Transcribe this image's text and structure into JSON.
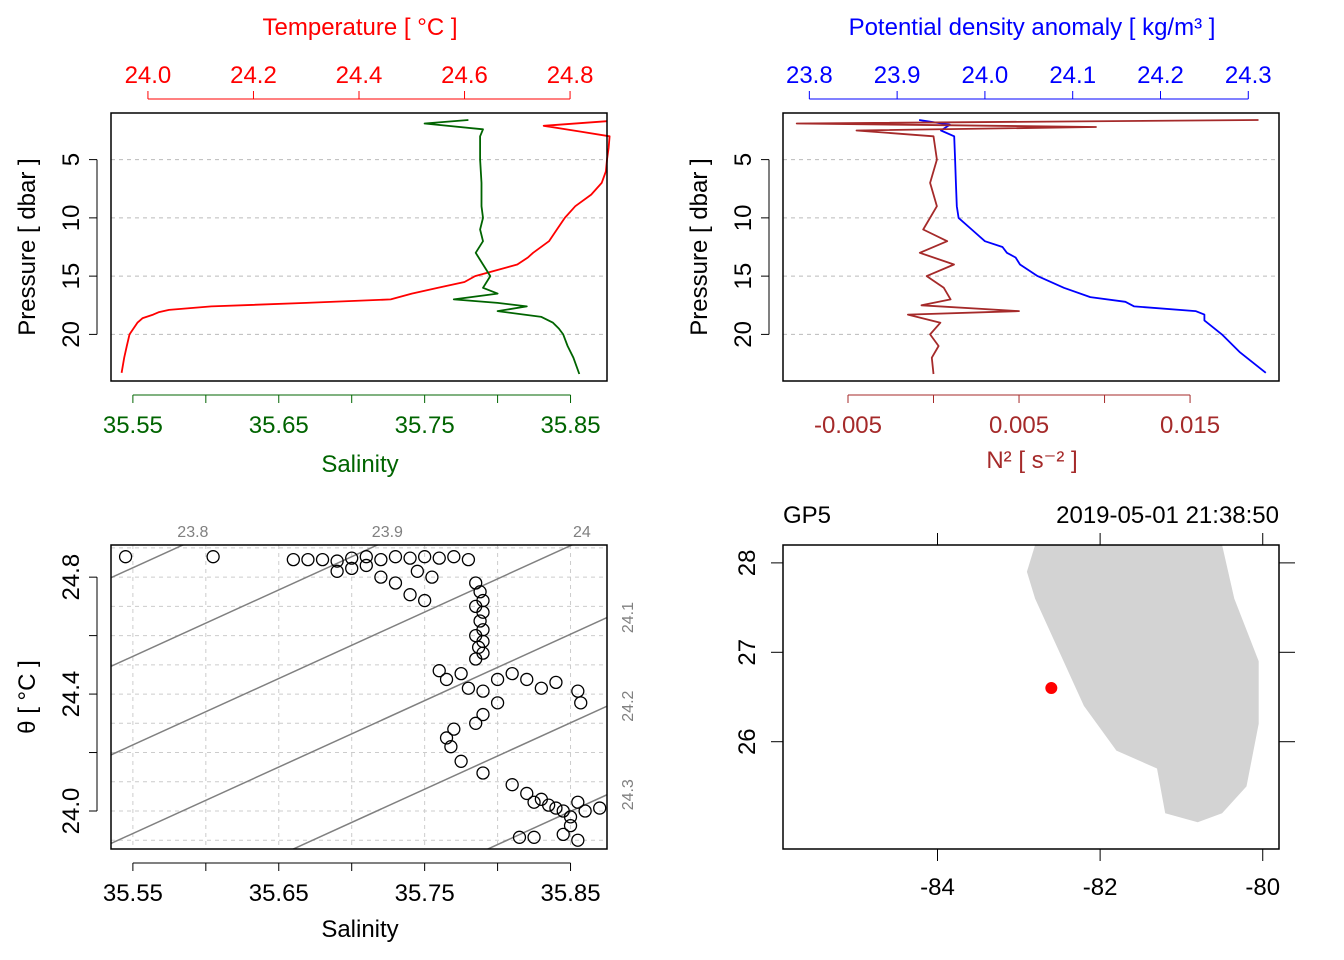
{
  "colors": {
    "temperature": "#ff0000",
    "salinity": "#006400",
    "density": "#0000ff",
    "n2": "#a52a2a",
    "grey": "#808080",
    "land": "#d3d3d3",
    "station": "#ff0000",
    "black": "#000000"
  },
  "chart_data": [
    {
      "type": "line",
      "panel": "top-left",
      "title": "Temperature [ °C ]",
      "top_axis": {
        "label": "Temperature [ °C ]",
        "range": [
          23.93,
          24.87
        ],
        "ticks": [
          "24.0",
          "24.2",
          "24.4",
          "24.6",
          "24.8"
        ]
      },
      "bottom_axis": {
        "label": "Salinity",
        "range": [
          35.535,
          35.875
        ],
        "ticks": [
          "35.55",
          "35.65",
          "35.75",
          "35.85"
        ],
        "minor_ticks": [
          35.6,
          35.7,
          35.8
        ]
      },
      "ylabel": "Pressure [ dbar ]",
      "ylim": [
        24,
        1
      ],
      "yticks": [
        "5",
        "10",
        "15",
        "20"
      ],
      "series": [
        {
          "name": "Temperature",
          "axis": "top",
          "p": [
            1.7,
            2.1,
            2.6,
            3.0,
            4.0,
            5.0,
            6.0,
            7.0,
            8.0,
            9.0,
            10.0,
            11.0,
            12.0,
            13.0,
            13.4,
            14.0,
            15.0,
            15.5,
            16.0,
            16.5,
            17.0,
            17.3,
            17.6,
            17.9,
            18.1,
            18.3,
            18.6,
            19.0,
            20.0,
            21.0,
            22.0,
            23.3
          ],
          "values": [
            24.87,
            24.75,
            24.82,
            24.875,
            24.873,
            24.87,
            24.868,
            24.86,
            24.84,
            24.81,
            24.79,
            24.775,
            24.76,
            24.73,
            24.72,
            24.7,
            24.62,
            24.6,
            24.55,
            24.5,
            24.46,
            24.3,
            24.12,
            24.04,
            24.02,
            24.01,
            23.99,
            23.98,
            23.965,
            23.96,
            23.955,
            23.95
          ]
        },
        {
          "name": "Salinity",
          "axis": "bottom",
          "p": [
            1.6,
            1.9,
            2.4,
            3.0,
            5.0,
            7.0,
            9.0,
            10.0,
            11.0,
            12.0,
            13.0,
            14.0,
            15.0,
            16.0,
            16.5,
            17.0,
            17.3,
            17.6,
            18.0,
            18.5,
            19.0,
            19.5,
            20.0,
            21.0,
            22.0,
            23.4
          ],
          "values": [
            35.78,
            35.75,
            35.79,
            35.788,
            35.788,
            35.789,
            35.789,
            35.79,
            35.788,
            35.79,
            35.785,
            35.79,
            35.795,
            35.79,
            35.8,
            35.77,
            35.8,
            35.82,
            35.8,
            35.83,
            35.838,
            35.842,
            35.845,
            35.848,
            35.852,
            35.856
          ]
        }
      ]
    },
    {
      "type": "line",
      "panel": "top-right",
      "title": "Potential density anomaly [ kg/m³ ]",
      "top_axis": {
        "label": "Potential density anomaly [ kg/m³ ]",
        "range": [
          23.77,
          24.335
        ],
        "ticks": [
          "23.8",
          "23.9",
          "24.0",
          "24.1",
          "24.2",
          "24.3"
        ]
      },
      "bottom_axis": {
        "label": "N² [ s⁻² ]",
        "range": [
          -0.0088,
          0.0202
        ],
        "ticks": [
          "-0.005",
          "0.005",
          "0.015"
        ],
        "minor_ticks": [
          0,
          0.01
        ]
      },
      "ylabel": "Pressure [ dbar ]",
      "ylim": [
        24,
        1
      ],
      "yticks": [
        "5",
        "10",
        "15",
        "20"
      ],
      "series": [
        {
          "name": "Potential density anomaly",
          "axis": "top",
          "p": [
            1.6,
            2.0,
            2.5,
            3.0,
            5.0,
            7.0,
            9.0,
            10.0,
            11.0,
            12.0,
            12.5,
            13.0,
            13.4,
            14.0,
            15.0,
            16.0,
            16.8,
            17.2,
            17.6,
            18.0,
            18.3,
            18.8,
            20.0,
            21.5,
            23.3
          ],
          "values": [
            23.925,
            23.96,
            23.95,
            23.965,
            23.966,
            23.967,
            23.968,
            23.97,
            23.985,
            24.0,
            24.02,
            24.025,
            24.035,
            24.04,
            24.06,
            24.09,
            24.12,
            24.16,
            24.17,
            24.24,
            24.25,
            24.25,
            24.27,
            24.29,
            24.32
          ]
        },
        {
          "name": "N²",
          "axis": "bottom",
          "p": [
            1.6,
            1.9,
            2.2,
            2.5,
            3.0,
            5.0,
            7.0,
            9.0,
            11.0,
            12.0,
            13.0,
            14.0,
            15.0,
            16.0,
            17.0,
            17.5,
            18.0,
            18.3,
            19.0,
            20.0,
            21.0,
            22.0,
            23.4
          ],
          "values": [
            0.019,
            -0.008,
            0.0095,
            -0.0045,
            0.0,
            0.0002,
            -0.0002,
            0.0002,
            -0.0006,
            0.0008,
            -0.0008,
            0.0012,
            -0.0004,
            0.0006,
            0.001,
            -0.0007,
            0.005,
            -0.0015,
            0.0004,
            -0.0002,
            0.0003,
            -0.0001,
            0.0
          ]
        }
      ]
    },
    {
      "type": "scatter",
      "panel": "bottom-left",
      "xlabel": "Salinity",
      "ylabel": "θ [ °C ]",
      "xlim": [
        35.535,
        35.875
      ],
      "ylim": [
        23.87,
        24.91
      ],
      "xticks": [
        "35.55",
        "35.65",
        "35.75",
        "35.85"
      ],
      "yticks": [
        "24.0",
        "24.4",
        "24.8"
      ],
      "isopycnals": [
        "23.8",
        "23.9",
        "24",
        "24.1",
        "24.2",
        "24.3"
      ],
      "points": [
        [
          35.545,
          24.87
        ],
        [
          35.605,
          24.87
        ],
        [
          35.66,
          24.86
        ],
        [
          35.67,
          24.86
        ],
        [
          35.68,
          24.86
        ],
        [
          35.69,
          24.855
        ],
        [
          35.7,
          24.865
        ],
        [
          35.71,
          24.87
        ],
        [
          35.72,
          24.86
        ],
        [
          35.73,
          24.87
        ],
        [
          35.74,
          24.865
        ],
        [
          35.75,
          24.87
        ],
        [
          35.76,
          24.865
        ],
        [
          35.77,
          24.87
        ],
        [
          35.78,
          24.86
        ],
        [
          35.69,
          24.82
        ],
        [
          35.7,
          24.83
        ],
        [
          35.71,
          24.84
        ],
        [
          35.72,
          24.8
        ],
        [
          35.73,
          24.78
        ],
        [
          35.74,
          24.74
        ],
        [
          35.75,
          24.72
        ],
        [
          35.745,
          24.82
        ],
        [
          35.755,
          24.8
        ],
        [
          35.785,
          24.78
        ],
        [
          35.788,
          24.75
        ],
        [
          35.79,
          24.72
        ],
        [
          35.785,
          24.7
        ],
        [
          35.79,
          24.68
        ],
        [
          35.788,
          24.65
        ],
        [
          35.79,
          24.62
        ],
        [
          35.785,
          24.6
        ],
        [
          35.79,
          24.58
        ],
        [
          35.787,
          24.56
        ],
        [
          35.79,
          24.54
        ],
        [
          35.785,
          24.52
        ],
        [
          35.76,
          24.48
        ],
        [
          35.765,
          24.45
        ],
        [
          35.775,
          24.47
        ],
        [
          35.78,
          24.42
        ],
        [
          35.79,
          24.41
        ],
        [
          35.8,
          24.45
        ],
        [
          35.81,
          24.47
        ],
        [
          35.82,
          24.45
        ],
        [
          35.83,
          24.42
        ],
        [
          35.84,
          24.44
        ],
        [
          35.855,
          24.41
        ],
        [
          35.857,
          24.37
        ],
        [
          35.8,
          24.37
        ],
        [
          35.79,
          24.33
        ],
        [
          35.785,
          24.3
        ],
        [
          35.77,
          24.28
        ],
        [
          35.765,
          24.25
        ],
        [
          35.768,
          24.22
        ],
        [
          35.775,
          24.17
        ],
        [
          35.79,
          24.13
        ],
        [
          35.81,
          24.09
        ],
        [
          35.82,
          24.06
        ],
        [
          35.825,
          24.03
        ],
        [
          35.83,
          24.04
        ],
        [
          35.835,
          24.02
        ],
        [
          35.84,
          24.01
        ],
        [
          35.845,
          24.0
        ],
        [
          35.85,
          23.98
        ],
        [
          35.855,
          24.03
        ],
        [
          35.86,
          24.0
        ],
        [
          35.87,
          24.01
        ],
        [
          35.85,
          23.95
        ],
        [
          35.845,
          23.92
        ],
        [
          35.855,
          23.9
        ],
        [
          35.825,
          23.91
        ],
        [
          35.815,
          23.91
        ]
      ]
    },
    {
      "type": "map",
      "panel": "bottom-right",
      "title_left": "GP5",
      "title_right": "2019-05-01 21:38:50",
      "xlim": [
        -85.9,
        -79.8
      ],
      "ylim": [
        24.8,
        28.2
      ],
      "xticks": [
        "-84",
        "-82",
        "-80"
      ],
      "yticks": [
        "26",
        "27",
        "28"
      ],
      "station": {
        "lon": -82.6,
        "lat": 26.6
      },
      "land": [
        [
          -82.8,
          28.2
        ],
        [
          -80.5,
          28.2
        ],
        [
          -80.35,
          27.6
        ],
        [
          -80.05,
          26.9
        ],
        [
          -80.05,
          26.2
        ],
        [
          -80.2,
          25.5
        ],
        [
          -80.5,
          25.2
        ],
        [
          -80.8,
          25.1
        ],
        [
          -81.2,
          25.2
        ],
        [
          -81.3,
          25.7
        ],
        [
          -81.8,
          25.9
        ],
        [
          -82.2,
          26.4
        ],
        [
          -82.5,
          27.0
        ],
        [
          -82.8,
          27.6
        ],
        [
          -82.9,
          27.9
        ]
      ]
    }
  ]
}
